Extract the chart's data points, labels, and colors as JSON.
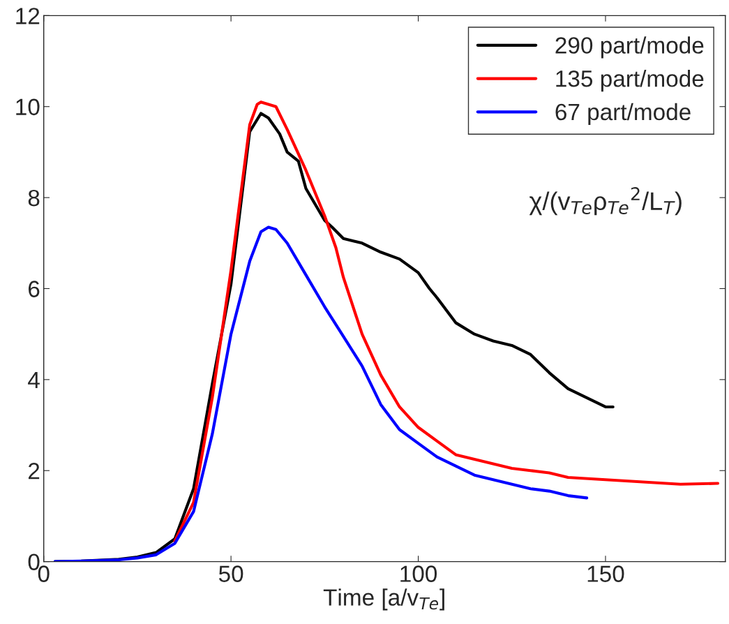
{
  "chart_data": {
    "type": "line",
    "xlabel": "Time [a/v$_{Te}$]",
    "annotations": [
      "χ/(v$_{Te}$ρ$_{Te}$$^{2}$/L$_{T}$)"
    ],
    "xlim": [
      0,
      182
    ],
    "ylim": [
      0,
      12
    ],
    "xticks": [
      0,
      50,
      100,
      150
    ],
    "yticks": [
      0,
      2,
      4,
      6,
      8,
      10,
      12
    ],
    "grid": false,
    "legend": "top right",
    "line_style": "solid",
    "marker": "none",
    "series": [
      {
        "name": "290 part/mode",
        "color": "#000000",
        "x": [
          3,
          10,
          20,
          25,
          30,
          35,
          40,
          45,
          50,
          55,
          58,
          60,
          63,
          65,
          68,
          70,
          75,
          77,
          80,
          85,
          90,
          95,
          100,
          103,
          105,
          110,
          115,
          120,
          125,
          130,
          135,
          140,
          145,
          150,
          152
        ],
        "values": [
          0,
          0.01,
          0.05,
          0.1,
          0.2,
          0.5,
          1.6,
          3.9,
          6.1,
          9.45,
          9.85,
          9.75,
          9.4,
          9.0,
          8.8,
          8.2,
          7.5,
          7.35,
          7.1,
          7.0,
          6.8,
          6.65,
          6.35,
          6.0,
          5.8,
          5.25,
          5.0,
          4.85,
          4.75,
          4.55,
          4.15,
          3.8,
          3.6,
          3.4,
          3.4
        ]
      },
      {
        "name": "135 part/mode",
        "color": "#ff0000",
        "x": [
          35,
          40,
          45,
          50,
          55,
          57,
          58,
          60,
          62,
          65,
          70,
          75,
          78,
          80,
          85,
          90,
          95,
          100,
          105,
          110,
          115,
          120,
          125,
          130,
          135,
          140,
          150,
          160,
          170,
          180
        ],
        "values": [
          0.45,
          1.3,
          3.6,
          6.4,
          9.6,
          10.05,
          10.1,
          10.05,
          10.0,
          9.5,
          8.6,
          7.6,
          6.9,
          6.25,
          5.0,
          4.1,
          3.4,
          2.95,
          2.65,
          2.35,
          2.25,
          2.15,
          2.05,
          2.0,
          1.95,
          1.85,
          1.8,
          1.75,
          1.7,
          1.72
        ]
      },
      {
        "name": "67 part/mode",
        "color": "#0000ff",
        "x": [
          3,
          10,
          20,
          25,
          30,
          35,
          40,
          45,
          50,
          55,
          58,
          60,
          62,
          65,
          70,
          75,
          80,
          85,
          90,
          95,
          100,
          105,
          110,
          115,
          120,
          125,
          130,
          135,
          140,
          145
        ],
        "values": [
          0,
          0.01,
          0.04,
          0.08,
          0.15,
          0.4,
          1.1,
          2.8,
          5.0,
          6.6,
          7.25,
          7.35,
          7.3,
          7.0,
          6.3,
          5.6,
          4.95,
          4.3,
          3.45,
          2.9,
          2.6,
          2.3,
          2.1,
          1.9,
          1.8,
          1.7,
          1.6,
          1.55,
          1.45,
          1.4
        ]
      }
    ]
  }
}
